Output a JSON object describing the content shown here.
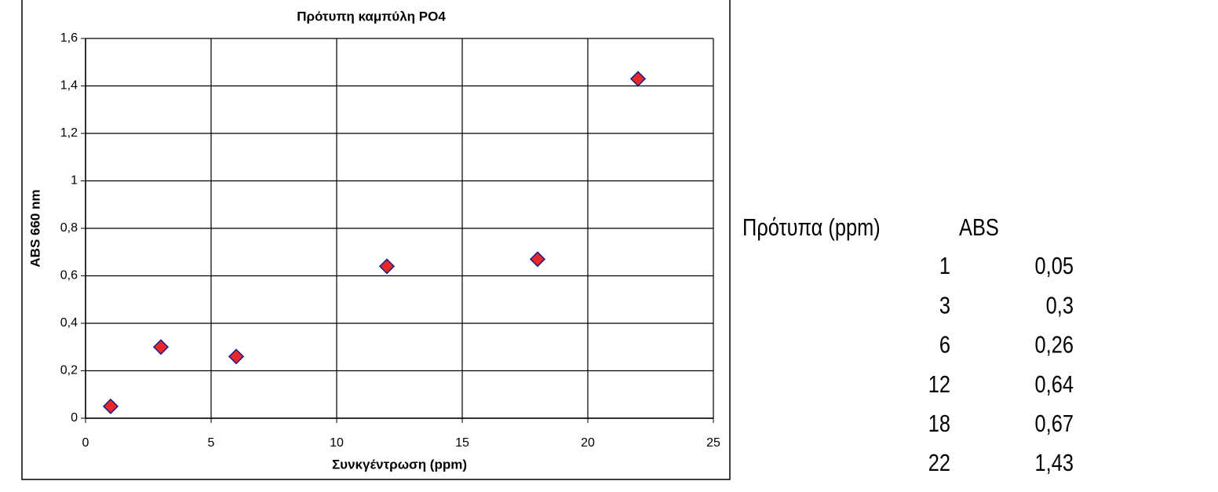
{
  "chart_data": {
    "type": "scatter",
    "title": "Πρότυπη καμπύλη PO4",
    "x_label": "Συνκγέντρωση (ppm)",
    "y_label": "ABS 660 nm",
    "series": [
      {
        "color": "#e8272a",
        "x": [
          1,
          3,
          6,
          12,
          18,
          22
        ],
        "values": [
          0.05,
          0.3,
          0.26,
          0.64,
          0.67,
          1.43
        ]
      }
    ],
    "xlim": [
      0,
      25
    ],
    "xticks": [
      0,
      5,
      10,
      15,
      20,
      25
    ],
    "ylim": [
      0,
      1.6
    ],
    "yticks": [
      0,
      {
        "value": 0.2,
        "label": "0,2"
      },
      {
        "value": 0.4,
        "label": "0,4"
      },
      {
        "value": 0.6,
        "label": "0,6"
      },
      {
        "value": 0.8,
        "label": "0,8"
      },
      1,
      {
        "value": 1.2,
        "label": "1,2"
      },
      {
        "value": 1.4,
        "label": "1,4"
      },
      {
        "value": 1.6,
        "label": "1,6"
      }
    ],
    "grid": true
  },
  "table": {
    "headers": [
      "Πρότυπα (ppm)",
      "ABS"
    ],
    "rows": [
      [
        1,
        "0,05"
      ],
      [
        3,
        "0,3"
      ],
      [
        6,
        "0,26"
      ],
      [
        12,
        "0,64"
      ],
      [
        18,
        "0,67"
      ],
      [
        22,
        "1,43"
      ]
    ]
  }
}
